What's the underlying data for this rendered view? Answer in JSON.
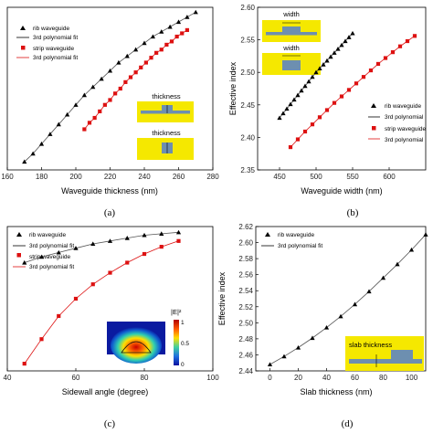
{
  "chart_data": [
    {
      "id": "a",
      "type": "line",
      "panel_label": "(a)",
      "xlabel": "Waveguide thickness (nm)",
      "ylabel": "",
      "xlim": [
        160,
        280
      ],
      "ylim": [
        0,
        1
      ],
      "xticks": [
        "160",
        "180",
        "200",
        "220",
        "240",
        "260",
        "280"
      ],
      "legend": [
        "rib waveguide",
        "3rd polynomial fit",
        "strip waveguide",
        "3rd polynomial fit"
      ],
      "insets": [
        "thickness",
        "thickness"
      ],
      "series": [
        {
          "name": "rib waveguide",
          "marker": "triangle",
          "color": "#000000",
          "x": [
            170,
            175,
            180,
            185,
            190,
            195,
            200,
            205,
            210,
            215,
            220,
            225,
            230,
            235,
            240,
            245,
            250,
            255,
            260,
            265,
            270
          ],
          "y": [
            0.05,
            0.1,
            0.16,
            0.22,
            0.28,
            0.34,
            0.4,
            0.46,
            0.51,
            0.56,
            0.61,
            0.66,
            0.7,
            0.74,
            0.78,
            0.82,
            0.85,
            0.88,
            0.91,
            0.94,
            0.97
          ]
        },
        {
          "name": "strip waveguide",
          "marker": "square",
          "color": "#dd1111",
          "x": [
            205,
            208,
            211,
            214,
            217,
            220,
            223,
            226,
            229,
            232,
            235,
            238,
            241,
            244,
            247,
            250,
            253,
            256,
            259,
            262,
            265
          ],
          "y": [
            0.25,
            0.29,
            0.32,
            0.36,
            0.4,
            0.43,
            0.47,
            0.5,
            0.54,
            0.57,
            0.6,
            0.63,
            0.66,
            0.69,
            0.72,
            0.74,
            0.77,
            0.79,
            0.82,
            0.84,
            0.86
          ]
        }
      ]
    },
    {
      "id": "b",
      "type": "line",
      "panel_label": "(b)",
      "xlabel": "Waveguide width (nm)",
      "ylabel": "Effective index",
      "xlim": [
        420,
        650
      ],
      "ylim": [
        2.35,
        2.6
      ],
      "xticks": [
        "450",
        "500",
        "550",
        "600"
      ],
      "yticks": [
        "2.35",
        "2.40",
        "2.45",
        "2.50",
        "2.55",
        "2.60"
      ],
      "legend": [
        "rib waveguide",
        "3rd polynomial",
        "strip waveguide",
        "3rd polynomial"
      ],
      "insets": [
        "width",
        "width"
      ],
      "series": [
        {
          "name": "rib waveguide",
          "marker": "triangle",
          "color": "#000000",
          "x": [
            450,
            455,
            460,
            465,
            470,
            475,
            480,
            485,
            490,
            495,
            500,
            505,
            510,
            515,
            520,
            525,
            530,
            535,
            540,
            545,
            550
          ],
          "y": [
            2.43,
            2.437,
            2.444,
            2.451,
            2.458,
            2.465,
            2.472,
            2.479,
            2.486,
            2.493,
            2.5,
            2.506,
            2.512,
            2.518,
            2.524,
            2.53,
            2.536,
            2.542,
            2.548,
            2.554,
            2.56
          ]
        },
        {
          "name": "strip waveguide",
          "marker": "square",
          "color": "#dd1111",
          "x": [
            465,
            475,
            485,
            495,
            505,
            515,
            525,
            535,
            545,
            555,
            565,
            575,
            585,
            595,
            605,
            615,
            625,
            635
          ],
          "y": [
            2.385,
            2.397,
            2.409,
            2.42,
            2.431,
            2.442,
            2.453,
            2.463,
            2.473,
            2.483,
            2.493,
            2.503,
            2.513,
            2.522,
            2.531,
            2.54,
            2.548,
            2.556
          ]
        }
      ]
    },
    {
      "id": "c",
      "type": "line",
      "panel_label": "(c)",
      "xlabel": "Sidewall angle (degree)",
      "ylabel": "",
      "xlim": [
        40,
        100
      ],
      "ylim": [
        0,
        1
      ],
      "xticks": [
        "40",
        "60",
        "80",
        "100"
      ],
      "legend": [
        "rib waveguide",
        "3rd polynomial fit",
        "strip waveguide",
        "3rd polynomial fit"
      ],
      "colorbar": {
        "title": "|E|²",
        "ticks": [
          "1",
          "0.5",
          "0"
        ]
      },
      "series": [
        {
          "name": "rib waveguide",
          "marker": "triangle",
          "color": "#000000",
          "x": [
            45,
            50,
            55,
            60,
            65,
            70,
            75,
            80,
            85,
            90
          ],
          "y": [
            0.75,
            0.79,
            0.82,
            0.85,
            0.88,
            0.9,
            0.92,
            0.94,
            0.95,
            0.96
          ]
        },
        {
          "name": "strip waveguide",
          "marker": "square",
          "color": "#dd1111",
          "x": [
            45,
            50,
            55,
            60,
            65,
            70,
            75,
            80,
            85,
            90
          ],
          "y": [
            0.05,
            0.22,
            0.38,
            0.5,
            0.6,
            0.68,
            0.75,
            0.81,
            0.86,
            0.9
          ]
        }
      ]
    },
    {
      "id": "d",
      "type": "line",
      "panel_label": "(d)",
      "xlabel": "Slab thickness (nm)",
      "ylabel": "Effective index",
      "xlim": [
        -10,
        110
      ],
      "ylim": [
        2.44,
        2.62
      ],
      "xticks": [
        "0",
        "20",
        "40",
        "60",
        "80",
        "100"
      ],
      "yticks": [
        "2.44",
        "2.46",
        "2.48",
        "2.50",
        "2.52",
        "2.54",
        "2.56",
        "2.58",
        "2.60",
        "2.62"
      ],
      "legend": [
        "rib waveguide",
        "3rd polynomial fit"
      ],
      "insets": [
        "slab thickness"
      ],
      "series": [
        {
          "name": "rib waveguide",
          "marker": "triangle",
          "color": "#000000",
          "x": [
            0,
            10,
            20,
            30,
            40,
            50,
            60,
            70,
            80,
            90,
            100,
            110
          ],
          "y": [
            2.448,
            2.458,
            2.469,
            2.481,
            2.494,
            2.508,
            2.523,
            2.539,
            2.556,
            2.573,
            2.591,
            2.61
          ]
        }
      ]
    }
  ]
}
